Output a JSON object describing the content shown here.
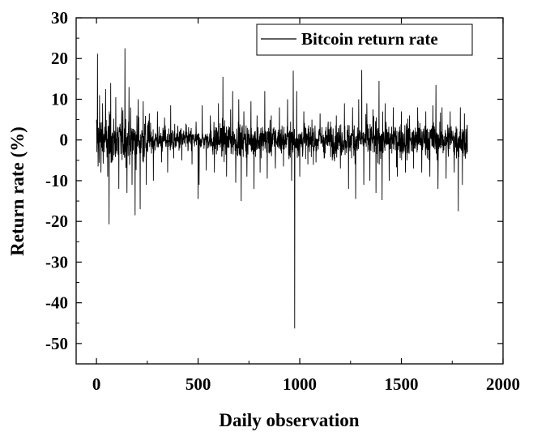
{
  "chart_data": {
    "type": "line",
    "title": "",
    "xlabel": "Daily observation",
    "ylabel": "Return rate (%)",
    "xlim": [
      -100,
      2000
    ],
    "ylim": [
      -55,
      30
    ],
    "x_ticks": [
      0,
      500,
      1000,
      1500,
      2000
    ],
    "y_ticks": [
      30,
      20,
      10,
      0,
      -10,
      -20,
      -30,
      -40,
      -50
    ],
    "grid": false,
    "legend_position": "top-right",
    "series": [
      {
        "name": "Bitcoin return rate",
        "color": "#000000",
        "x_start": 0,
        "x_end": 1825,
        "typical_amplitude": 3.5,
        "points": [
          [
            0,
            5.0
          ],
          [
            2,
            -3.0
          ],
          [
            5,
            21.2
          ],
          [
            8,
            -6.5
          ],
          [
            15,
            11.0
          ],
          [
            22,
            -8.0
          ],
          [
            30,
            9.0
          ],
          [
            45,
            12.5
          ],
          [
            55,
            -9.0
          ],
          [
            62,
            -20.7
          ],
          [
            70,
            14.0
          ],
          [
            80,
            -5.0
          ],
          [
            95,
            10.5
          ],
          [
            110,
            -12.0
          ],
          [
            125,
            8.0
          ],
          [
            140,
            22.5
          ],
          [
            150,
            -13.0
          ],
          [
            160,
            13.0
          ],
          [
            175,
            -11.0
          ],
          [
            190,
            -18.5
          ],
          [
            205,
            10.0
          ],
          [
            215,
            -17.0
          ],
          [
            230,
            9.5
          ],
          [
            245,
            -11.0
          ],
          [
            260,
            6.5
          ],
          [
            280,
            -10.0
          ],
          [
            300,
            7.0
          ],
          [
            320,
            -5.5
          ],
          [
            335,
            5.5
          ],
          [
            350,
            -8.0
          ],
          [
            365,
            8.5
          ],
          [
            380,
            -4.5
          ],
          [
            400,
            3.5
          ],
          [
            420,
            -5.0
          ],
          [
            440,
            4.0
          ],
          [
            470,
            -6.0
          ],
          [
            490,
            4.5
          ],
          [
            500,
            -14.5
          ],
          [
            505,
            -11.0
          ],
          [
            520,
            8.5
          ],
          [
            540,
            -7.5
          ],
          [
            560,
            6.0
          ],
          [
            580,
            -8.0
          ],
          [
            600,
            9.0
          ],
          [
            622,
            15.5
          ],
          [
            640,
            -9.0
          ],
          [
            660,
            7.5
          ],
          [
            670,
            12.0
          ],
          [
            685,
            -10.5
          ],
          [
            700,
            10.0
          ],
          [
            712,
            -15.0
          ],
          [
            725,
            7.0
          ],
          [
            740,
            -9.0
          ],
          [
            760,
            9.5
          ],
          [
            775,
            -12.0
          ],
          [
            790,
            6.0
          ],
          [
            805,
            -8.0
          ],
          [
            828,
            12.0
          ],
          [
            840,
            -9.5
          ],
          [
            860,
            6.0
          ],
          [
            880,
            -7.0
          ],
          [
            900,
            8.0
          ],
          [
            920,
            -6.5
          ],
          [
            940,
            10.0
          ],
          [
            960,
            -10.0
          ],
          [
            968,
            17.0
          ],
          [
            975,
            -46.3
          ],
          [
            985,
            12.0
          ],
          [
            1000,
            -9.0
          ],
          [
            1020,
            7.0
          ],
          [
            1040,
            -6.0
          ],
          [
            1060,
            5.0
          ],
          [
            1080,
            -5.5
          ],
          [
            1100,
            6.5
          ],
          [
            1120,
            -4.5
          ],
          [
            1140,
            4.5
          ],
          [
            1160,
            -5.0
          ],
          [
            1180,
            6.0
          ],
          [
            1200,
            -7.0
          ],
          [
            1220,
            9.0
          ],
          [
            1240,
            -12.0
          ],
          [
            1260,
            8.0
          ],
          [
            1275,
            -14.5
          ],
          [
            1290,
            10.0
          ],
          [
            1305,
            17.2
          ],
          [
            1315,
            -11.0
          ],
          [
            1330,
            9.0
          ],
          [
            1345,
            -10.0
          ],
          [
            1360,
            7.5
          ],
          [
            1375,
            -13.0
          ],
          [
            1390,
            14.5
          ],
          [
            1405,
            -14.8
          ],
          [
            1420,
            9.0
          ],
          [
            1440,
            -10.0
          ],
          [
            1460,
            8.0
          ],
          [
            1480,
            -9.0
          ],
          [
            1500,
            7.0
          ],
          [
            1520,
            -8.0
          ],
          [
            1540,
            6.0
          ],
          [
            1560,
            -7.0
          ],
          [
            1580,
            8.0
          ],
          [
            1600,
            -8.0
          ],
          [
            1620,
            7.0
          ],
          [
            1640,
            -9.0
          ],
          [
            1655,
            8.5
          ],
          [
            1670,
            13.5
          ],
          [
            1680,
            -12.0
          ],
          [
            1700,
            8.0
          ],
          [
            1720,
            -9.5
          ],
          [
            1740,
            7.0
          ],
          [
            1760,
            -8.0
          ],
          [
            1780,
            -17.5
          ],
          [
            1790,
            8.0
          ],
          [
            1800,
            -11.0
          ],
          [
            1810,
            6.5
          ],
          [
            1825,
            -3.0
          ]
        ]
      }
    ]
  }
}
